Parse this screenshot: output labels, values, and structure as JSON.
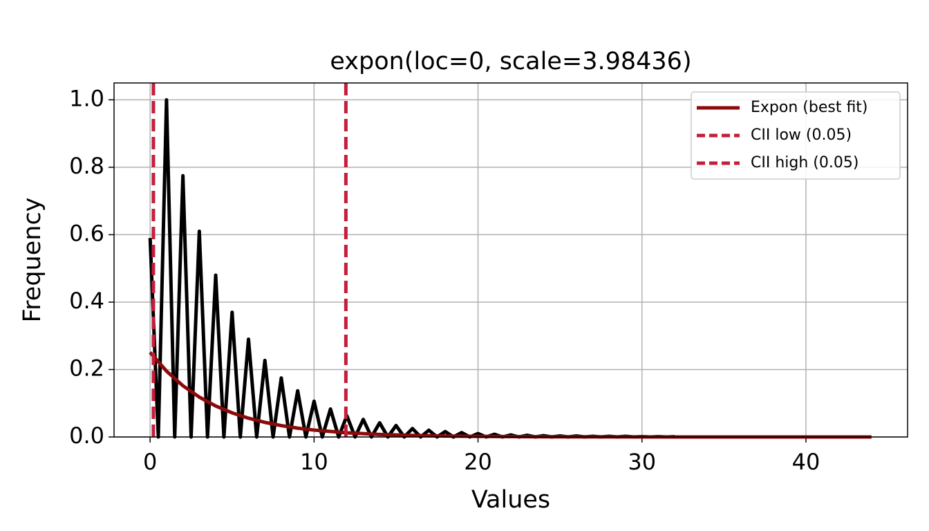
{
  "chart_data": {
    "type": "line",
    "title": "expon(loc=0, scale=3.98436)",
    "x_label": "Values",
    "y_label": "Frequency",
    "xlim": [
      -2.2,
      46.2
    ],
    "ylim": [
      0,
      1.05
    ],
    "xticks": [
      0,
      10,
      20,
      30,
      40
    ],
    "yticks": [
      {
        "value": 0,
        "label": "0.0"
      },
      0.2,
      0.4,
      0.6,
      0.8,
      {
        "value": 1,
        "label": "1.0"
      }
    ],
    "grid": true,
    "legend": "upper right",
    "series": [
      {
        "color": "#000000",
        "x": [
          0,
          0.5,
          1,
          1.5,
          2,
          2.5,
          3,
          3.5,
          4,
          4.5,
          5,
          5.5,
          6,
          6.5,
          7,
          7.5,
          8,
          8.5,
          9,
          9.5,
          10,
          10.5,
          11,
          11.5,
          12,
          12.5,
          13,
          13.5,
          14,
          14.5,
          15,
          15.5,
          16,
          16.5,
          17,
          17.5,
          18,
          18.5,
          19,
          19.5,
          20,
          20.5,
          21,
          21.5,
          22,
          22.5,
          23,
          23.5,
          24,
          24.5,
          25,
          25.5,
          26,
          26.5,
          27,
          27.5,
          28,
          28.5,
          29,
          29.5,
          30,
          30.5,
          31,
          31.5,
          32
        ],
        "values": [
          0.59,
          0,
          1.0,
          0,
          0.775,
          0,
          0.61,
          0,
          0.48,
          0,
          0.37,
          0,
          0.29,
          0,
          0.227,
          0,
          0.175,
          0,
          0.137,
          0,
          0.106,
          0,
          0.083,
          0,
          0.063,
          0,
          0.052,
          0,
          0.042,
          0,
          0.034,
          0,
          0.025,
          0,
          0.02,
          0,
          0.016,
          0,
          0.013,
          0,
          0.01,
          0,
          0.008,
          0,
          0.006,
          0,
          0.005,
          0,
          0.004,
          0,
          0.003,
          0,
          0.003,
          0,
          0.002,
          0,
          0.002,
          0,
          0.002,
          0,
          0.001,
          0,
          0.001,
          0,
          0.001
        ]
      },
      {
        "name": "Expon (best fit)",
        "color": "#8b0a0a",
        "x": [
          0,
          1,
          2,
          3,
          4,
          5,
          6,
          7,
          8,
          9,
          10,
          12,
          14,
          16,
          18,
          20,
          24,
          28,
          32,
          36,
          40,
          44
        ],
        "values": [
          0.251,
          0.1953,
          0.152,
          0.1182,
          0.092,
          0.0716,
          0.0557,
          0.0433,
          0.0337,
          0.0262,
          0.0204,
          0.0124,
          0.0075,
          0.0045,
          0.0028,
          0.0017,
          0.0006,
          0.0002,
          0.0001,
          0,
          0,
          0
        ]
      }
    ],
    "vlines": [
      {
        "name": "CII low (0.05)",
        "x": 0.2,
        "color": "#c41e3a"
      },
      {
        "name": "CII high (0.05)",
        "x": 11.94,
        "color": "#c41e3a"
      }
    ]
  }
}
